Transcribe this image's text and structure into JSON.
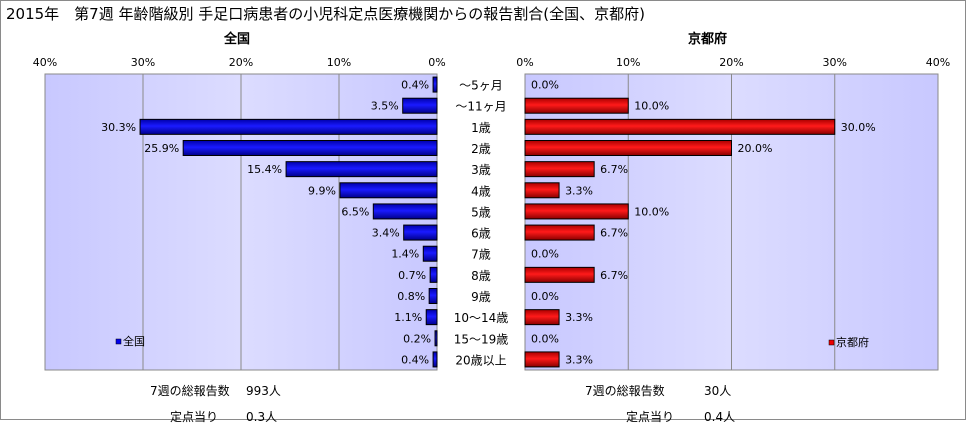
{
  "title": "2015年　第7週 年齢階級別 手足口病患者の小児科定点医療機関からの報告割合(全国、京都府)",
  "categories": [
    "～5ヶ月",
    "～11ヶ月",
    "1歳",
    "2歳",
    "3歳",
    "4歳",
    "5歳",
    "6歳",
    "7歳",
    "8歳",
    "9歳",
    "10～14歳",
    "15～19歳",
    "20歳以上"
  ],
  "chart_data": [
    {
      "type": "bar",
      "title": "全国",
      "orientation": "horizontal-reversed",
      "categories": [
        "～5ヶ月",
        "～11ヶ月",
        "1歳",
        "2歳",
        "3歳",
        "4歳",
        "5歳",
        "6歳",
        "7歳",
        "8歳",
        "9歳",
        "10～14歳",
        "15～19歳",
        "20歳以上"
      ],
      "series": [
        {
          "name": "全国",
          "values": [
            0.4,
            3.5,
            30.3,
            25.9,
            15.4,
            9.9,
            6.5,
            3.4,
            1.4,
            0.7,
            0.8,
            1.1,
            0.2,
            0.4
          ],
          "color": "#0000ee"
        }
      ],
      "value_labels": [
        "0.4%",
        "3.5%",
        "30.3%",
        "25.9%",
        "15.4%",
        "9.9%",
        "6.5%",
        "3.4%",
        "1.4%",
        "0.7%",
        "0.8%",
        "1.1%",
        "0.2%",
        "0.4%"
      ],
      "xlim": [
        0,
        40
      ],
      "ticks": [
        "0%",
        "10%",
        "20%",
        "30%",
        "40%"
      ],
      "legend": "bottom-left",
      "grid": true
    },
    {
      "type": "bar",
      "title": "京都府",
      "orientation": "horizontal",
      "categories": [
        "～5ヶ月",
        "～11ヶ月",
        "1歳",
        "2歳",
        "3歳",
        "4歳",
        "5歳",
        "6歳",
        "7歳",
        "8歳",
        "9歳",
        "10～14歳",
        "15～19歳",
        "20歳以上"
      ],
      "series": [
        {
          "name": "京都府",
          "values": [
            0.0,
            10.0,
            30.0,
            20.0,
            6.7,
            3.3,
            10.0,
            6.7,
            0.0,
            6.7,
            0.0,
            3.3,
            0.0,
            3.3
          ],
          "color": "#ee0000"
        }
      ],
      "value_labels": [
        "0.0%",
        "10.0%",
        "30.0%",
        "20.0%",
        "6.7%",
        "3.3%",
        "10.0%",
        "6.7%",
        "0.0%",
        "6.7%",
        "0.0%",
        "3.3%",
        "0.0%",
        "3.3%"
      ],
      "xlim": [
        0,
        40
      ],
      "ticks": [
        "0%",
        "10%",
        "20%",
        "30%",
        "40%"
      ],
      "legend": "bottom-right",
      "grid": true
    }
  ],
  "footer": {
    "left": {
      "total_label": "7週の総報告数",
      "total_value": "993人",
      "per_label": "定点当り",
      "per_value": "0.3人"
    },
    "right": {
      "total_label": "7週の総報告数",
      "total_value": "30人",
      "per_label": "定点当り",
      "per_value": "0.4人"
    }
  },
  "colors": {
    "plot_bg": "#ccccff",
    "plot_bg_edge": "#e6e6ff",
    "grid": "#8a8a8a"
  }
}
